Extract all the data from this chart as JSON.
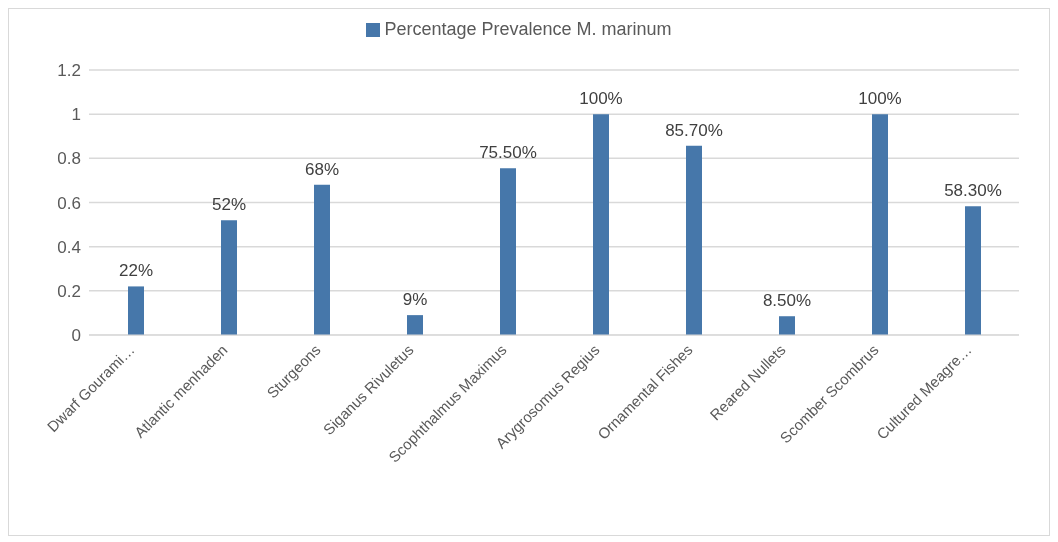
{
  "chart_data": {
    "type": "bar",
    "categories": [
      "Dwarf Gourami…",
      "Atlantic menhaden",
      "Sturgeons",
      "Siganus Rivuletus",
      "Scophthalmus Maximus",
      "Arygrosomus Regius",
      "Ornamental Fishes",
      "Reared Nullets",
      "Scomber Scombrus",
      "Cultured Meagre…"
    ],
    "series": [
      {
        "name": "Percentage Prevalence M. marinum",
        "color": "#4677aa",
        "values": [
          0.22,
          0.52,
          0.68,
          0.09,
          0.755,
          1,
          0.857,
          0.085,
          1,
          0.583
        ],
        "value_labels": [
          "22%",
          "52%",
          "68%",
          "9%",
          "75.50%",
          "100%",
          "85.70%",
          "8.50%",
          "100%",
          "58.30%"
        ]
      }
    ],
    "ylim": [
      0,
      1.2
    ],
    "yticks": [
      0,
      0.2,
      0.4,
      0.6,
      0.8,
      1,
      1.2
    ],
    "grid": "y",
    "legend": "top"
  }
}
